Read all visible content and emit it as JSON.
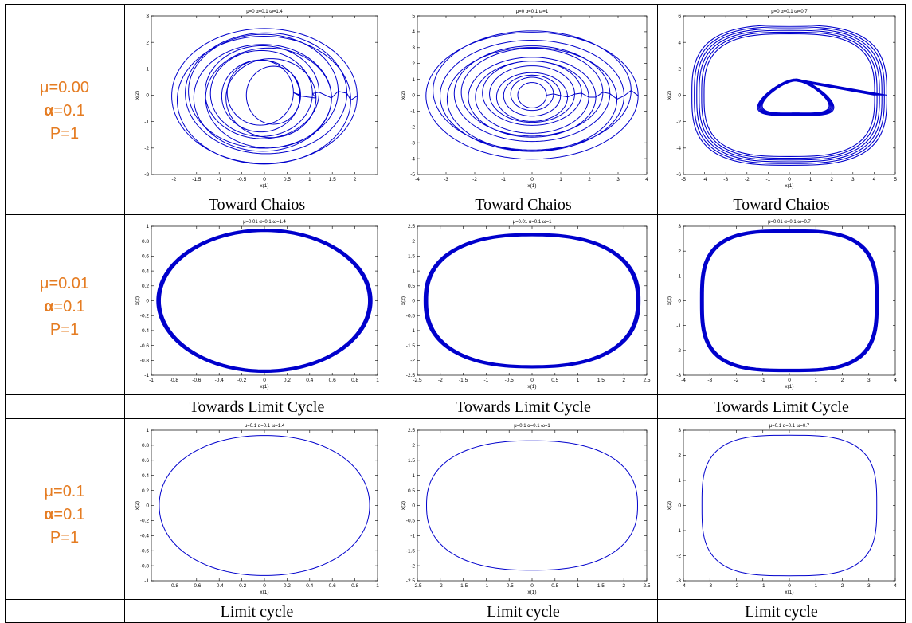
{
  "rows": [
    {
      "params": {
        "mu": "μ=0.00",
        "alpha_symbol": "α",
        "alpha_value": "=0.1",
        "p": "P=1"
      },
      "captions": [
        "Toward Chaios",
        "Toward Chaios",
        "Toward Chaios"
      ]
    },
    {
      "params": {
        "mu": "μ=0.01",
        "alpha_symbol": "α",
        "alpha_value": "=0.1",
        "p": "P=1"
      },
      "captions": [
        "Towards Limit Cycle",
        "Towards Limit Cycle",
        "Towards Limit Cycle"
      ]
    },
    {
      "params": {
        "mu": "μ=0.1",
        "alpha_symbol": "α",
        "alpha_value": "=0.1",
        "p": "P=1"
      },
      "captions": [
        "Limit cycle",
        "Limit cycle",
        "Limit cycle"
      ]
    }
  ],
  "colors": {
    "param_text": "#e57c22",
    "trajectory": "#0000cc",
    "grid_lines": "#000000"
  },
  "chart_data": [
    {
      "type": "line",
      "title": "μ=0 α=0.1 ω=1.4",
      "xlabel": "x(1)",
      "ylabel": "x(2)",
      "xlim": [
        -2.5,
        2.5
      ],
      "ylim": [
        -3,
        3
      ],
      "xticks": [
        -2,
        -1.5,
        -1,
        -0.5,
        0,
        0.5,
        1,
        1.5,
        2
      ],
      "yticks": [
        -3,
        -2,
        -1,
        0,
        1,
        2,
        3
      ],
      "xtick_labels": [
        "-2",
        "-1.5",
        "-1",
        "-0.5",
        "0",
        "0.5",
        "1",
        "1.5",
        "2"
      ],
      "ytick_labels": [
        "-3",
        "-2",
        "-1",
        "0",
        "1",
        "2",
        "3"
      ],
      "trajectory": {
        "kind": "chaotic",
        "outer_x": 2.05,
        "outer_y": 2.55,
        "inner_x": 0.6,
        "inner_y": 1.1,
        "inner_center_x": 0.2,
        "loops": 12
      }
    },
    {
      "type": "line",
      "title": "μ=0 α=0.1 ω=1",
      "xlabel": "x(1)",
      "ylabel": "x(2)",
      "xlim": [
        -4,
        4
      ],
      "ylim": [
        -5,
        5
      ],
      "xticks": [
        -4,
        -3,
        -2,
        -1,
        0,
        1,
        2,
        3,
        4
      ],
      "yticks": [
        -5,
        -4,
        -3,
        -2,
        -1,
        0,
        1,
        2,
        3,
        4,
        5
      ],
      "xtick_labels": [
        "-4",
        "-3",
        "-2",
        "-1",
        "0",
        "1",
        "2",
        "3",
        "4"
      ],
      "ytick_labels": [
        "-5",
        "-4",
        "-3",
        "-2",
        "-1",
        "0",
        "1",
        "2",
        "3",
        "4",
        "5"
      ],
      "trajectory": {
        "kind": "chaotic",
        "outer_x": 3.7,
        "outer_y": 4.0,
        "inner_x": 0.5,
        "inner_y": 0.8,
        "inner_center_x": 0.0,
        "loops": 14
      }
    },
    {
      "type": "line",
      "title": "μ=0 α=0.1 ω=0.7",
      "xlabel": "x(1)",
      "ylabel": "x(2)",
      "xlim": [
        -5,
        5
      ],
      "ylim": [
        -6,
        6
      ],
      "xticks": [
        -5,
        -4,
        -3,
        -2,
        -1,
        0,
        1,
        2,
        3,
        4,
        5
      ],
      "yticks": [
        -6,
        -4,
        -2,
        0,
        2,
        4,
        6
      ],
      "xtick_labels": [
        "-5",
        "-4",
        "-3",
        "-2",
        "-1",
        "0",
        "1",
        "2",
        "3",
        "4",
        "5"
      ],
      "ytick_labels": [
        "-6",
        "-4",
        "-2",
        "0",
        "2",
        "4",
        "6"
      ],
      "trajectory": {
        "kind": "heart",
        "outer_x": 4.6,
        "outer_y": 5.3,
        "inner_x": 1.8,
        "inner_y": 1.7,
        "inner_center_x": 0.3,
        "loops": 6
      }
    },
    {
      "type": "line",
      "title": "μ=0.01 α=0.1 ω=1.4",
      "xlabel": "x(1)",
      "ylabel": "x(2)",
      "xlim": [
        -1,
        1
      ],
      "ylim": [
        -1,
        1
      ],
      "xticks": [
        -1,
        -0.8,
        -0.6,
        -0.4,
        -0.2,
        0,
        0.2,
        0.4,
        0.6,
        0.8,
        1
      ],
      "yticks": [
        -1,
        -0.8,
        -0.6,
        -0.4,
        -0.2,
        0,
        0.2,
        0.4,
        0.6,
        0.8,
        1
      ],
      "xtick_labels": [
        "-1",
        "-0.8",
        "-0.6",
        "-0.4",
        "-0.2",
        "0",
        "0.2",
        "0.4",
        "0.6",
        "0.8",
        "1"
      ],
      "ytick_labels": [
        "-1",
        "-0.8",
        "-0.6",
        "-0.4",
        "-0.2",
        "0",
        "0.2",
        "0.4",
        "0.6",
        "0.8",
        "1"
      ],
      "trajectory": {
        "kind": "thick",
        "outer_x": 0.95,
        "outer_y": 0.96,
        "squareness": 2.0
      }
    },
    {
      "type": "line",
      "title": "μ=0.01 α=0.1 ω=1",
      "xlabel": "x(1)",
      "ylabel": "x(2)",
      "xlim": [
        -2.5,
        2.5
      ],
      "ylim": [
        -2.5,
        2.5
      ],
      "xticks": [
        -2.5,
        -2,
        -1.5,
        -1,
        -0.5,
        0,
        0.5,
        1,
        1.5,
        2,
        2.5
      ],
      "yticks": [
        -2.5,
        -2,
        -1.5,
        -1,
        -0.5,
        0,
        0.5,
        1,
        1.5,
        2,
        2.5
      ],
      "xtick_labels": [
        "-2.5",
        "-2",
        "-1.5",
        "-1",
        "-0.5",
        "0",
        "0.5",
        "1",
        "1.5",
        "2",
        "2.5"
      ],
      "ytick_labels": [
        "-2.5",
        "-2",
        "-1.5",
        "-1",
        "-0.5",
        "0",
        "0.5",
        "1",
        "1.5",
        "2",
        "2.5"
      ],
      "trajectory": {
        "kind": "thick",
        "outer_x": 2.35,
        "outer_y": 2.25,
        "squareness": 2.4
      }
    },
    {
      "type": "line",
      "title": "μ=0.01 α=0.1 ω=0.7",
      "xlabel": "x(1)",
      "ylabel": "x(2)",
      "xlim": [
        -4,
        4
      ],
      "ylim": [
        -3,
        3
      ],
      "xticks": [
        -4,
        -3,
        -2,
        -1,
        0,
        1,
        2,
        3,
        4
      ],
      "yticks": [
        -3,
        -2,
        -1,
        0,
        1,
        2,
        3
      ],
      "xtick_labels": [
        "-4",
        "-3",
        "-2",
        "-1",
        "0",
        "1",
        "2",
        "3",
        "4"
      ],
      "ytick_labels": [
        "-3",
        "-2",
        "-1",
        "0",
        "1",
        "2",
        "3"
      ],
      "trajectory": {
        "kind": "thick",
        "outer_x": 3.35,
        "outer_y": 2.85,
        "squareness": 3.2
      }
    },
    {
      "type": "line",
      "title": "μ=0.1 α=0.1 ω=1.4",
      "xlabel": "x(1)",
      "ylabel": "x(2)",
      "xlim": [
        -1,
        1
      ],
      "ylim": [
        -1,
        1
      ],
      "xticks": [
        -0.8,
        -0.6,
        -0.4,
        -0.2,
        0,
        0.2,
        0.4,
        0.6,
        0.8,
        1
      ],
      "yticks": [
        -1,
        -0.8,
        -0.6,
        -0.4,
        -0.2,
        0,
        0.2,
        0.4,
        0.6,
        0.8,
        1
      ],
      "xtick_labels": [
        "-0.8",
        "-0.6",
        "-0.4",
        "-0.2",
        "0",
        "0.2",
        "0.4",
        "0.6",
        "0.8",
        "1"
      ],
      "ytick_labels": [
        "-1",
        "-0.8",
        "-0.6",
        "-0.4",
        "-0.2",
        "0",
        "0.2",
        "0.4",
        "0.6",
        "0.8",
        "1"
      ],
      "trajectory": {
        "kind": "thin",
        "outer_x": 0.93,
        "outer_y": 0.93,
        "squareness": 2.1
      }
    },
    {
      "type": "line",
      "title": "μ=0.1 α=0.1 ω=1",
      "xlabel": "x(1)",
      "ylabel": "x(2)",
      "xlim": [
        -2.5,
        2.5
      ],
      "ylim": [
        -2.5,
        2.5
      ],
      "xticks": [
        -2.5,
        -2,
        -1.5,
        -1,
        -0.5,
        0,
        0.5,
        1,
        1.5,
        2,
        2.5
      ],
      "yticks": [
        -2.5,
        -2,
        -1.5,
        -1,
        -0.5,
        0,
        0.5,
        1,
        1.5,
        2,
        2.5
      ],
      "xtick_labels": [
        "-2.5",
        "-2",
        "-1.5",
        "-1",
        "-0.5",
        "0",
        "0.5",
        "1",
        "1.5",
        "2",
        "2.5"
      ],
      "ytick_labels": [
        "-2.5",
        "-2",
        "-1.5",
        "-1",
        "-0.5",
        "0",
        "0.5",
        "1",
        "1.5",
        "2",
        "2.5"
      ],
      "trajectory": {
        "kind": "thin",
        "outer_x": 2.3,
        "outer_y": 2.15,
        "squareness": 2.4
      }
    },
    {
      "type": "line",
      "title": "μ=0.1 α=0.1 ω=0.7",
      "xlabel": "x(1)",
      "ylabel": "x(2)",
      "xlim": [
        -4,
        4
      ],
      "ylim": [
        -3,
        3
      ],
      "xticks": [
        -4,
        -3,
        -2,
        -1,
        0,
        1,
        2,
        3,
        4
      ],
      "yticks": [
        -3,
        -2,
        -1,
        0,
        1,
        2,
        3
      ],
      "xtick_labels": [
        "-4",
        "-3",
        "-2",
        "-1",
        "0",
        "1",
        "2",
        "3",
        "4"
      ],
      "ytick_labels": [
        "-3",
        "-2",
        "-1",
        "0",
        "1",
        "2",
        "3"
      ],
      "trajectory": {
        "kind": "thin",
        "outer_x": 3.3,
        "outer_y": 2.8,
        "squareness": 3.2
      }
    }
  ]
}
